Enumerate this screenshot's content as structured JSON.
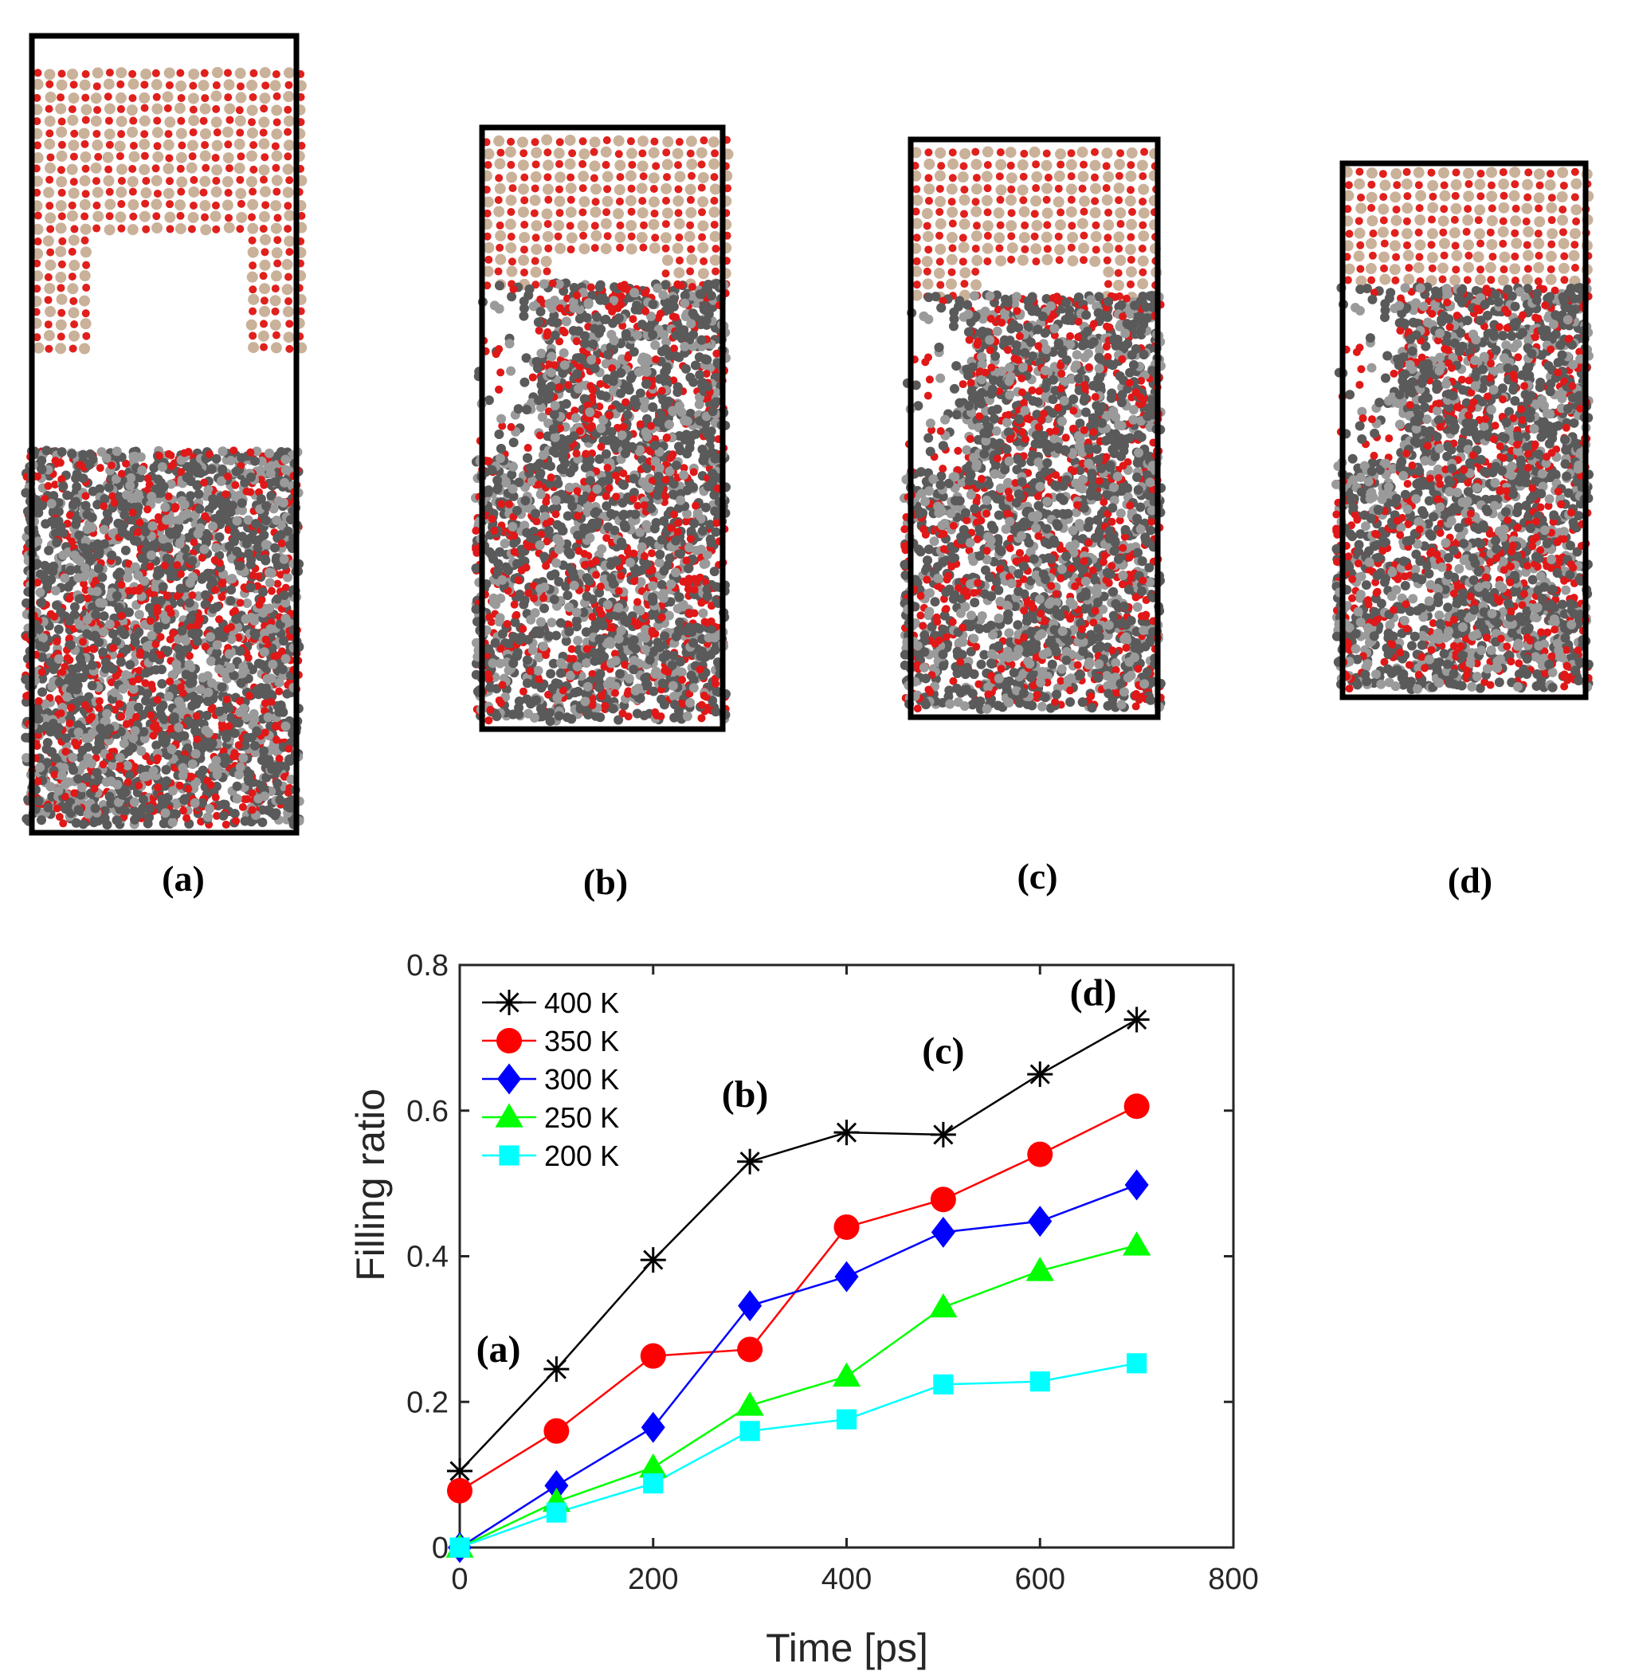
{
  "panels": [
    {
      "label": "(a)",
      "fill": 0.1
    },
    {
      "label": "(b)",
      "fill": 0.53
    },
    {
      "label": "(c)",
      "fill": 0.567
    },
    {
      "label": "(d)",
      "fill": 0.725
    }
  ],
  "colors": {
    "wall_red": "#e0201c",
    "wall_tan": "#c9b19a",
    "fluid_gray": "#5a5a5a",
    "fluid_light": "#9a9a9a",
    "fluid_red": "#e01818",
    "frame": "#000000"
  },
  "chart_data": {
    "type": "line",
    "xlabel": "Time [ps]",
    "ylabel": "Filling ratio",
    "xlim": [
      0,
      800
    ],
    "ylim": [
      0,
      0.8
    ],
    "xticks": [
      "0",
      "200",
      "400",
      "600",
      "800"
    ],
    "yticks": [
      "0",
      "0.2",
      "0.4",
      "0.6",
      "0.8"
    ],
    "x": [
      0,
      100,
      200,
      300,
      400,
      500,
      600,
      700
    ],
    "legend_position": "top-left",
    "series": [
      {
        "name": "400 K",
        "color": "#000000",
        "marker": "asterisk",
        "values": [
          0.105,
          0.245,
          0.395,
          0.53,
          0.57,
          0.567,
          0.65,
          0.725
        ]
      },
      {
        "name": "350 K",
        "color": "#ff0000",
        "marker": "circle",
        "values": [
          0.078,
          0.16,
          0.263,
          0.272,
          0.44,
          0.478,
          0.54,
          0.606
        ]
      },
      {
        "name": "300 K",
        "color": "#0000ff",
        "marker": "diamond",
        "values": [
          0.0,
          0.085,
          0.165,
          0.332,
          0.372,
          0.433,
          0.448,
          0.498
        ]
      },
      {
        "name": "250 K",
        "color": "#00ff00",
        "marker": "triangle",
        "values": [
          0.0,
          0.063,
          0.11,
          0.195,
          0.235,
          0.33,
          0.38,
          0.415
        ]
      },
      {
        "name": "200 K",
        "color": "#00ffff",
        "marker": "square",
        "values": [
          0.0,
          0.048,
          0.088,
          0.16,
          0.176,
          0.224,
          0.228,
          0.253
        ]
      }
    ],
    "annotations": [
      {
        "text": "(a)",
        "x": 40,
        "y": 0.255
      },
      {
        "text": "(b)",
        "x": 295,
        "y": 0.605
      },
      {
        "text": "(c)",
        "x": 500,
        "y": 0.665
      },
      {
        "text": "(d)",
        "x": 655,
        "y": 0.745
      }
    ]
  }
}
